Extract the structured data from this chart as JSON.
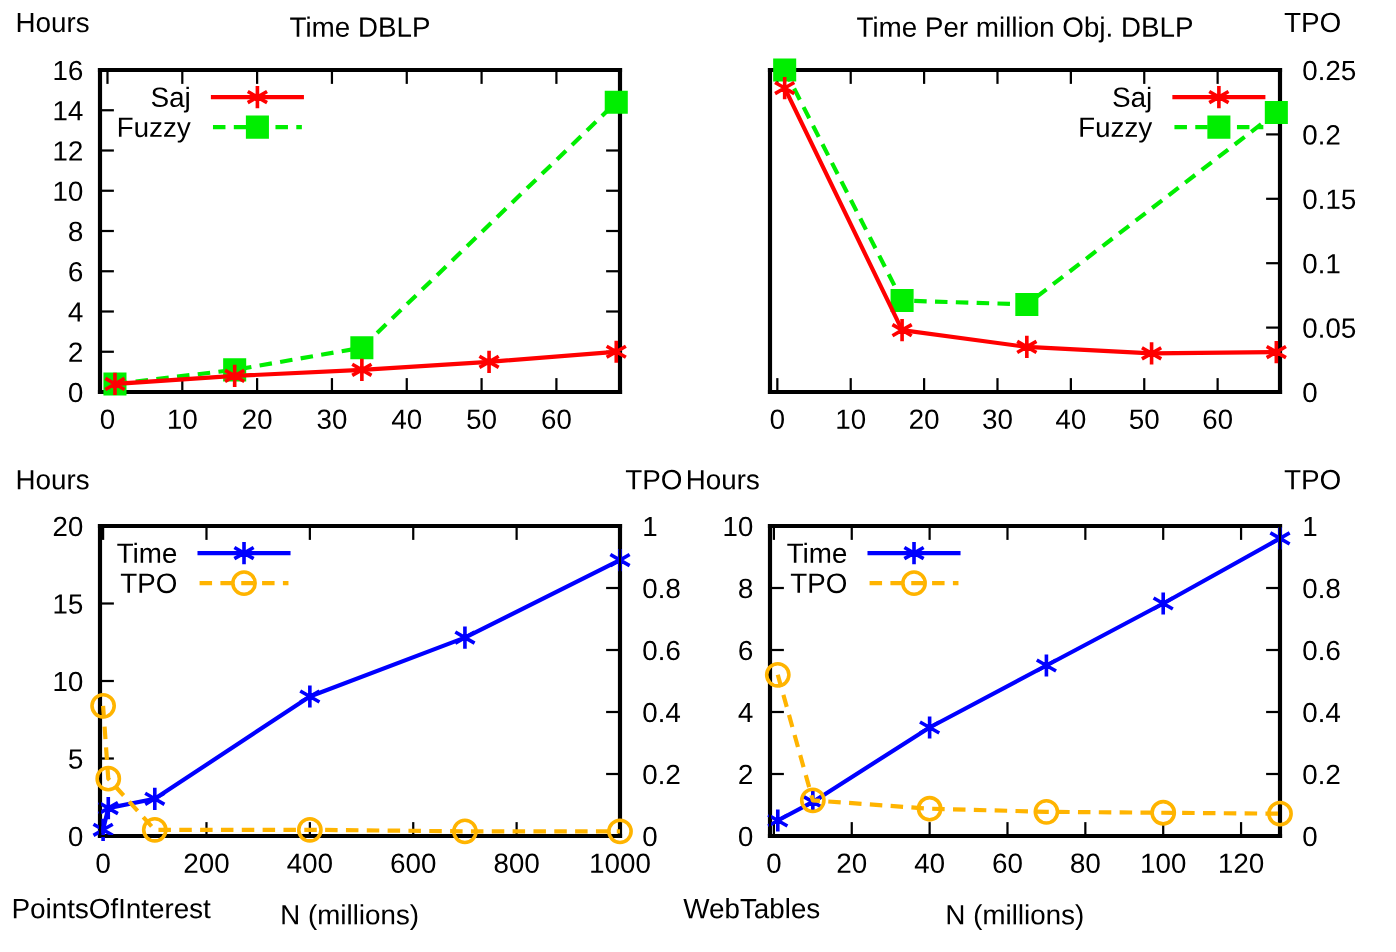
{
  "chart_data": [
    {
      "type": "line",
      "title": "Time DBLP",
      "ylabel": "Hours",
      "xlim": [
        -1,
        68.5
      ],
      "xticks": [
        0,
        10,
        20,
        30,
        40,
        50,
        60
      ],
      "ylim": [
        0,
        16
      ],
      "yticks": [
        0,
        2,
        4,
        6,
        8,
        10,
        12,
        14,
        16
      ],
      "legend": "top left",
      "grid": false,
      "series": [
        {
          "name": "Saj",
          "color": "#ff0000",
          "x": [
            1,
            17,
            34,
            51,
            68
          ],
          "values": [
            0.4,
            0.8,
            1.1,
            1.5,
            2.0
          ],
          "marker": "cross",
          "line_style": "solid"
        },
        {
          "name": "Fuzzy",
          "color": "#00ee00",
          "x": [
            1,
            17,
            34,
            68
          ],
          "values": [
            0.4,
            1.1,
            2.2,
            14.4
          ],
          "marker": "square",
          "line_style": "dashed"
        }
      ]
    },
    {
      "type": "line",
      "title": "Time Per million Obj. DBLP",
      "y2label": "TPO",
      "xlim": [
        -1,
        68.5
      ],
      "xticks": [
        0,
        10,
        20,
        30,
        40,
        50,
        60
      ],
      "y2lim": [
        0,
        0.25
      ],
      "y2ticks": [
        0,
        0.05,
        0.1,
        0.15,
        0.2,
        0.25
      ],
      "legend": "top right",
      "grid": false,
      "series": [
        {
          "name": "Saj",
          "color": "#ff0000",
          "axis": "y2",
          "x": [
            1,
            17,
            34,
            51,
            68
          ],
          "values": [
            0.236,
            0.048,
            0.035,
            0.03,
            0.031
          ],
          "marker": "cross",
          "line_style": "solid"
        },
        {
          "name": "Fuzzy",
          "color": "#00ee00",
          "axis": "y2",
          "x": [
            1,
            17,
            34,
            68
          ],
          "values": [
            0.25,
            0.071,
            0.068,
            0.217
          ],
          "marker": "square",
          "line_style": "dashed"
        }
      ]
    },
    {
      "type": "line",
      "xlabel": "N (millions)",
      "ylabel": "Hours",
      "y2label": "TPO",
      "annotations": [
        "PointsOfInterest"
      ],
      "xlim": [
        -6,
        1000
      ],
      "xticks": [
        0,
        200,
        400,
        600,
        800,
        1000
      ],
      "ylim": [
        0,
        20
      ],
      "yticks": [
        0,
        5,
        10,
        15,
        20
      ],
      "y2lim": [
        0,
        1
      ],
      "y2ticks": [
        0,
        0.2,
        0.4,
        0.6,
        0.8,
        1
      ],
      "legend": "top left",
      "grid": false,
      "series": [
        {
          "name": "Time",
          "color": "#0000ff",
          "x": [
            0,
            10,
            100,
            400,
            700,
            1000
          ],
          "values": [
            0.4,
            1.8,
            2.4,
            9.0,
            12.8,
            17.8
          ],
          "marker": "cross",
          "line_style": "solid"
        },
        {
          "name": "TPO",
          "color": "#ffb400",
          "axis": "y2",
          "x": [
            0,
            10,
            100,
            400,
            700,
            1000
          ],
          "values": [
            0.42,
            0.185,
            0.02,
            0.02,
            0.015,
            0.015
          ],
          "marker": "circle",
          "line_style": "dashed"
        }
      ]
    },
    {
      "type": "line",
      "xlabel": "N (millions)",
      "ylabel": "Hours",
      "y2label": "TPO",
      "annotations": [
        "WebTables"
      ],
      "xlim": [
        -1,
        130
      ],
      "xticks": [
        0,
        20,
        40,
        60,
        80,
        100,
        120
      ],
      "ylim": [
        0,
        10
      ],
      "yticks": [
        0,
        2,
        4,
        6,
        8,
        10
      ],
      "y2lim": [
        0,
        1
      ],
      "y2ticks": [
        0,
        0.2,
        0.4,
        0.6,
        0.8,
        1
      ],
      "legend": "top left",
      "grid": false,
      "series": [
        {
          "name": "Time",
          "color": "#0000ff",
          "x": [
            1,
            10,
            40,
            70,
            100,
            130
          ],
          "values": [
            0.5,
            1.1,
            3.5,
            5.5,
            7.5,
            9.6
          ],
          "marker": "cross",
          "line_style": "solid"
        },
        {
          "name": "TPO",
          "color": "#ffb400",
          "axis": "y2",
          "x": [
            1,
            10,
            40,
            70,
            100,
            130
          ],
          "values": [
            0.52,
            0.115,
            0.088,
            0.078,
            0.075,
            0.072
          ],
          "marker": "circle",
          "line_style": "dashed"
        }
      ]
    }
  ]
}
